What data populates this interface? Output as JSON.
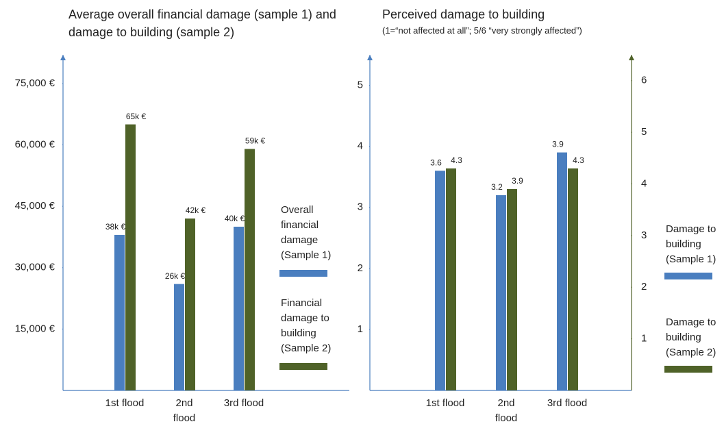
{
  "chart_data": [
    {
      "type": "bar",
      "title": "Average overall financial damage (sample 1) and damage to building (sample 2)",
      "categories": [
        "1st flood",
        "2nd flood",
        "3rd flood"
      ],
      "series": [
        {
          "name": "Overall financial damage (Sample 1)",
          "color": "#4a7ebf",
          "values": [
            38000,
            26000,
            40000
          ],
          "value_labels": [
            "38k €",
            "26k €",
            "40k €"
          ]
        },
        {
          "name": "Financial damage to building (Sample 2)",
          "color": "#4f6228",
          "values": [
            65000,
            42000,
            59000
          ],
          "value_labels": [
            "65k €",
            "42k €",
            "59k €"
          ]
        }
      ],
      "ylim": [
        0,
        82000
      ],
      "yticks": [
        {
          "value": 15000,
          "label": "15,000 €"
        },
        {
          "value": 30000,
          "label": "30,000 €"
        },
        {
          "value": 45000,
          "label": "45,000 €"
        },
        {
          "value": 60000,
          "label": "60,000 €"
        },
        {
          "value": 75000,
          "label": "75,000 €"
        }
      ]
    },
    {
      "type": "bar",
      "title": "Perceived damage to building",
      "subtitle": "(1=“not affected at all”; 5/6 “very strongly affected”)",
      "categories": [
        "1st flood",
        "2nd flood",
        "3rd flood"
      ],
      "series": [
        {
          "name": "Damage to building (Sample 1)",
          "color": "#4a7ebf",
          "values": [
            3.6,
            3.2,
            3.9
          ]
        },
        {
          "name": "Damage to building (Sample 2)",
          "color": "#4f6228",
          "values": [
            4.3,
            3.9,
            4.3
          ],
          "axis": "y2"
        }
      ],
      "ylim": [
        0,
        5.5
      ],
      "yticks": [
        1,
        2,
        3,
        4,
        5
      ],
      "y2lim": [
        0,
        6.5
      ],
      "y2ticks": [
        1,
        2,
        3,
        4,
        5,
        6
      ]
    }
  ]
}
